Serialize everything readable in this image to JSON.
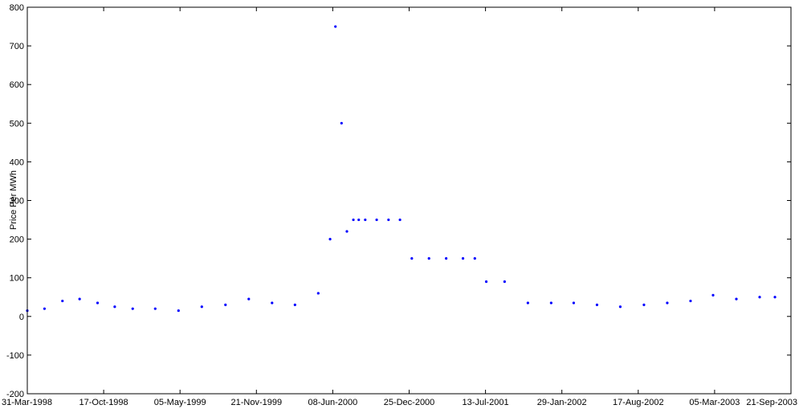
{
  "chart_data": {
    "type": "scatter",
    "title": "",
    "xlabel": "",
    "ylabel": "Price Per MWh",
    "x_tick_labels": [
      "31-Mar-1998",
      "17-Oct-1998",
      "05-May-1999",
      "21-Nov-1999",
      "08-Jun-2000",
      "25-Dec-2000",
      "13-Jul-2001",
      "29-Jan-2002",
      "17-Aug-2002",
      "05-Mar-2003",
      "21-Sep-2003"
    ],
    "xlim": [
      "1998-03-31",
      "2003-09-21"
    ],
    "y_ticks": [
      -200,
      -100,
      0,
      100,
      200,
      300,
      400,
      500,
      600,
      700,
      800
    ],
    "ylim": [
      -200,
      800
    ],
    "grid": false,
    "legend": "none",
    "series": [
      {
        "color": "#0000ff",
        "x": [
          "1998-03-31",
          "1998-05-15",
          "1998-07-01",
          "1998-08-15",
          "1998-10-01",
          "1998-11-15",
          "1999-01-01",
          "1999-03-01",
          "1999-05-01",
          "1999-07-01",
          "1999-09-01",
          "1999-11-01",
          "2000-01-01",
          "2000-03-01",
          "2000-05-01",
          "2000-06-01",
          "2000-06-15",
          "2000-07-01",
          "2000-07-15",
          "2000-08-01",
          "2000-08-15",
          "2000-09-01",
          "2000-10-01",
          "2000-11-01",
          "2000-12-01",
          "2001-01-01",
          "2001-02-15",
          "2001-04-01",
          "2001-05-15",
          "2001-06-15",
          "2001-07-15",
          "2001-09-01",
          "2001-11-01",
          "2002-01-01",
          "2002-03-01",
          "2002-05-01",
          "2002-07-01",
          "2002-09-01",
          "2002-11-01",
          "2003-01-01",
          "2003-03-01",
          "2003-05-01",
          "2003-07-01",
          "2003-08-10"
        ],
        "y": [
          15,
          20,
          40,
          45,
          35,
          25,
          20,
          20,
          15,
          25,
          30,
          45,
          35,
          30,
          60,
          200,
          750,
          500,
          220,
          250,
          250,
          250,
          250,
          250,
          250,
          150,
          150,
          150,
          150,
          150,
          90,
          90,
          35,
          35,
          35,
          30,
          25,
          30,
          35,
          40,
          55,
          45,
          50,
          50
        ]
      }
    ]
  }
}
